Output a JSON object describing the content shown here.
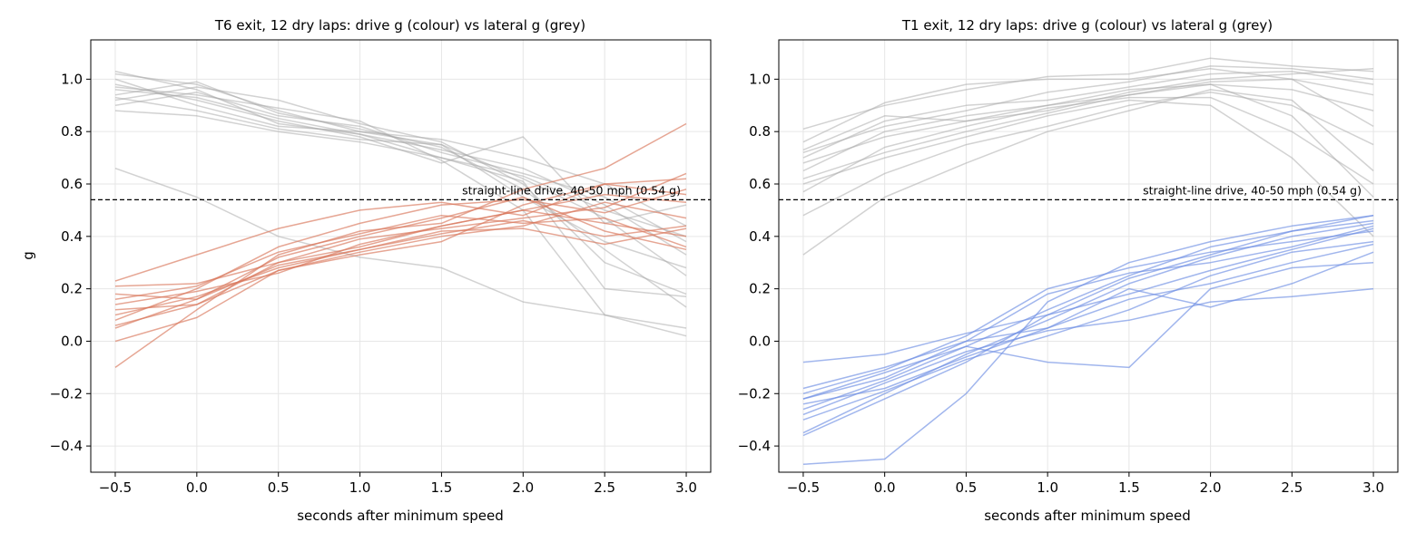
{
  "colors": {
    "drive_left": "#d9775a",
    "drive_right": "#6f8fe3",
    "lateral": "#a6a6a6",
    "reference": "#000000",
    "grid": "#e6e6e6"
  },
  "chart_data": [
    {
      "type": "line",
      "title": "T6 exit, 12 dry laps: drive g (colour) vs lateral g (grey)",
      "xlabel": "seconds after minimum speed",
      "ylabel": "g",
      "xlim": [
        -0.65,
        3.15
      ],
      "ylim": [
        -0.5,
        1.15
      ],
      "xticks": [
        -0.5,
        0.0,
        0.5,
        1.0,
        1.5,
        2.0,
        2.5,
        3.0
      ],
      "yticks": [
        -0.4,
        -0.2,
        0.0,
        0.2,
        0.4,
        0.6,
        0.8,
        1.0
      ],
      "xtick_labels": [
        "−0.5",
        "0.0",
        "0.5",
        "1.0",
        "1.5",
        "2.0",
        "2.5",
        "3.0"
      ],
      "ytick_labels": [
        "−0.4",
        "−0.2",
        "0.0",
        "0.2",
        "0.4",
        "0.6",
        "0.8",
        "1.0"
      ],
      "grid": true,
      "reference_line": {
        "y": 0.54,
        "label": "straight-line drive, 40-50 mph (0.54 g)"
      },
      "x": [
        -0.5,
        0.0,
        0.5,
        1.0,
        1.5,
        2.0,
        2.5,
        3.0
      ],
      "series": [
        {
          "group": "drive",
          "values": [
            0.06,
            0.14,
            0.3,
            0.36,
            0.44,
            0.5,
            0.56,
            0.53
          ]
        },
        {
          "group": "drive",
          "values": [
            0.1,
            0.17,
            0.28,
            0.35,
            0.41,
            0.46,
            0.4,
            0.44
          ]
        },
        {
          "group": "drive",
          "values": [
            0.23,
            0.33,
            0.43,
            0.5,
            0.53,
            0.48,
            0.6,
            0.62
          ]
        },
        {
          "group": "drive",
          "values": [
            0.18,
            0.16,
            0.32,
            0.4,
            0.47,
            0.55,
            0.42,
            0.35
          ]
        },
        {
          "group": "drive",
          "values": [
            0.0,
            0.09,
            0.27,
            0.34,
            0.4,
            0.44,
            0.53,
            0.47
          ]
        },
        {
          "group": "drive",
          "values": [
            -0.1,
            0.12,
            0.33,
            0.42,
            0.45,
            0.58,
            0.66,
            0.83
          ]
        },
        {
          "group": "drive",
          "values": [
            0.14,
            0.19,
            0.26,
            0.37,
            0.44,
            0.5,
            0.45,
            0.4
          ]
        },
        {
          "group": "drive",
          "values": [
            0.08,
            0.2,
            0.36,
            0.45,
            0.52,
            0.54,
            0.49,
            0.58
          ]
        },
        {
          "group": "drive",
          "values": [
            0.21,
            0.22,
            0.3,
            0.39,
            0.43,
            0.47,
            0.51,
            0.64
          ]
        },
        {
          "group": "drive",
          "values": [
            0.05,
            0.16,
            0.29,
            0.35,
            0.42,
            0.43,
            0.37,
            0.43
          ]
        },
        {
          "group": "drive",
          "values": [
            0.12,
            0.14,
            0.27,
            0.33,
            0.38,
            0.52,
            0.6,
            0.56
          ]
        },
        {
          "group": "drive",
          "values": [
            0.16,
            0.21,
            0.34,
            0.41,
            0.48,
            0.45,
            0.47,
            0.36
          ]
        },
        {
          "group": "lateral",
          "values": [
            1.02,
            0.98,
            0.88,
            0.8,
            0.75,
            0.62,
            0.47,
            0.25
          ]
        },
        {
          "group": "lateral",
          "values": [
            0.96,
            0.93,
            0.85,
            0.79,
            0.73,
            0.66,
            0.52,
            0.33
          ]
        },
        {
          "group": "lateral",
          "values": [
            0.92,
            0.97,
            0.92,
            0.83,
            0.76,
            0.6,
            0.3,
            0.18
          ]
        },
        {
          "group": "lateral",
          "values": [
            1.0,
            0.9,
            0.82,
            0.8,
            0.77,
            0.7,
            0.6,
            0.44
          ]
        },
        {
          "group": "lateral",
          "values": [
            0.88,
            0.86,
            0.8,
            0.76,
            0.7,
            0.63,
            0.5,
            0.4
          ]
        },
        {
          "group": "lateral",
          "values": [
            0.94,
            0.99,
            0.87,
            0.81,
            0.74,
            0.58,
            0.35,
            0.13
          ]
        },
        {
          "group": "lateral",
          "values": [
            0.98,
            0.92,
            0.84,
            0.78,
            0.68,
            0.78,
            0.45,
            0.52
          ]
        },
        {
          "group": "lateral",
          "values": [
            0.9,
            0.95,
            0.86,
            0.82,
            0.72,
            0.64,
            0.55,
            0.38
          ]
        },
        {
          "group": "lateral",
          "values": [
            1.03,
            0.96,
            0.83,
            0.79,
            0.7,
            0.61,
            0.2,
            0.17
          ]
        },
        {
          "group": "lateral",
          "values": [
            0.93,
            0.88,
            0.81,
            0.77,
            0.75,
            0.55,
            0.38,
            0.28
          ]
        },
        {
          "group": "lateral",
          "values": [
            0.97,
            0.94,
            0.89,
            0.84,
            0.69,
            0.5,
            0.1,
            0.02
          ]
        },
        {
          "group": "lateral",
          "values": [
            0.66,
            0.55,
            0.4,
            0.32,
            0.28,
            0.15,
            0.1,
            0.05
          ]
        }
      ]
    },
    {
      "type": "line",
      "title": "T1 exit, 12 dry laps: drive g (colour) vs lateral g (grey)",
      "xlabel": "seconds after minimum speed",
      "ylabel": "",
      "xlim": [
        -0.65,
        3.15
      ],
      "ylim": [
        -0.5,
        1.15
      ],
      "xticks": [
        -0.5,
        0.0,
        0.5,
        1.0,
        1.5,
        2.0,
        2.5,
        3.0
      ],
      "yticks": [
        -0.4,
        -0.2,
        0.0,
        0.2,
        0.4,
        0.6,
        0.8,
        1.0
      ],
      "xtick_labels": [
        "−0.5",
        "0.0",
        "0.5",
        "1.0",
        "1.5",
        "2.0",
        "2.5",
        "3.0"
      ],
      "ytick_labels": [
        "−0.4",
        "−0.2",
        "0.0",
        "0.2",
        "0.4",
        "0.6",
        "0.8",
        "1.0"
      ],
      "grid": true,
      "reference_line": {
        "y": 0.54,
        "label": "straight-line drive, 40-50 mph (0.54 g)"
      },
      "x": [
        -0.5,
        0.0,
        0.5,
        1.0,
        1.5,
        2.0,
        2.5,
        3.0
      ],
      "series": [
        {
          "group": "drive",
          "values": [
            -0.08,
            -0.05,
            0.03,
            0.1,
            0.18,
            0.27,
            0.35,
            0.43
          ]
        },
        {
          "group": "drive",
          "values": [
            -0.22,
            -0.12,
            -0.02,
            0.12,
            0.25,
            0.36,
            0.42,
            0.48
          ]
        },
        {
          "group": "drive",
          "values": [
            -0.35,
            -0.2,
            -0.05,
            0.08,
            0.22,
            0.32,
            0.4,
            0.45
          ]
        },
        {
          "group": "drive",
          "values": [
            -0.18,
            -0.1,
            0.0,
            0.05,
            0.16,
            0.22,
            0.3,
            0.37
          ]
        },
        {
          "group": "drive",
          "values": [
            -0.47,
            -0.45,
            -0.2,
            0.15,
            0.3,
            0.38,
            0.44,
            0.48
          ]
        },
        {
          "group": "drive",
          "values": [
            -0.26,
            -0.15,
            -0.02,
            -0.08,
            -0.1,
            0.2,
            0.28,
            0.3
          ]
        },
        {
          "group": "drive",
          "values": [
            -0.36,
            -0.22,
            -0.08,
            0.1,
            0.24,
            0.33,
            0.42,
            0.46
          ]
        },
        {
          "group": "drive",
          "values": [
            -0.2,
            -0.11,
            0.02,
            0.2,
            0.28,
            0.34,
            0.38,
            0.42
          ]
        },
        {
          "group": "drive",
          "values": [
            -0.24,
            -0.18,
            -0.06,
            0.05,
            0.2,
            0.13,
            0.22,
            0.34
          ]
        },
        {
          "group": "drive",
          "values": [
            -0.22,
            -0.14,
            0.0,
            0.18,
            0.26,
            0.3,
            0.36,
            0.44
          ]
        },
        {
          "group": "drive",
          "values": [
            -0.28,
            -0.16,
            -0.04,
            0.04,
            0.08,
            0.15,
            0.17,
            0.2
          ]
        },
        {
          "group": "drive",
          "values": [
            -0.3,
            -0.19,
            -0.07,
            0.02,
            0.12,
            0.25,
            0.34,
            0.38
          ]
        },
        {
          "group": "lateral",
          "values": [
            0.73,
            0.86,
            0.84,
            0.88,
            0.95,
            1.0,
            1.02,
            1.04
          ]
        },
        {
          "group": "lateral",
          "values": [
            0.81,
            0.9,
            0.96,
            1.01,
            1.02,
            1.08,
            1.05,
            1.03
          ]
        },
        {
          "group": "lateral",
          "values": [
            0.62,
            0.72,
            0.8,
            0.87,
            0.94,
            0.98,
            0.96,
            0.88
          ]
        },
        {
          "group": "lateral",
          "values": [
            0.48,
            0.64,
            0.75,
            0.82,
            0.9,
            0.95,
            0.9,
            0.75
          ]
        },
        {
          "group": "lateral",
          "values": [
            0.33,
            0.55,
            0.68,
            0.8,
            0.88,
            0.96,
            0.92,
            0.65
          ]
        },
        {
          "group": "lateral",
          "values": [
            0.7,
            0.84,
            0.9,
            0.92,
            0.97,
            1.02,
            1.03,
            0.98
          ]
        },
        {
          "group": "lateral",
          "values": [
            0.65,
            0.8,
            0.86,
            0.9,
            0.94,
            0.99,
            1.0,
            0.94
          ]
        },
        {
          "group": "lateral",
          "values": [
            0.76,
            0.91,
            0.98,
            1.0,
            1.0,
            1.04,
            1.0,
            0.82
          ]
        },
        {
          "group": "lateral",
          "values": [
            0.6,
            0.7,
            0.78,
            0.86,
            0.92,
            0.9,
            0.7,
            0.4
          ]
        },
        {
          "group": "lateral",
          "values": [
            0.68,
            0.78,
            0.84,
            0.9,
            0.96,
            0.98,
            0.86,
            0.55
          ]
        },
        {
          "group": "lateral",
          "values": [
            0.72,
            0.82,
            0.88,
            0.95,
            0.99,
            1.05,
            1.04,
            1.0
          ]
        },
        {
          "group": "lateral",
          "values": [
            0.57,
            0.74,
            0.82,
            0.89,
            0.93,
            0.93,
            0.8,
            0.6
          ]
        }
      ]
    }
  ]
}
